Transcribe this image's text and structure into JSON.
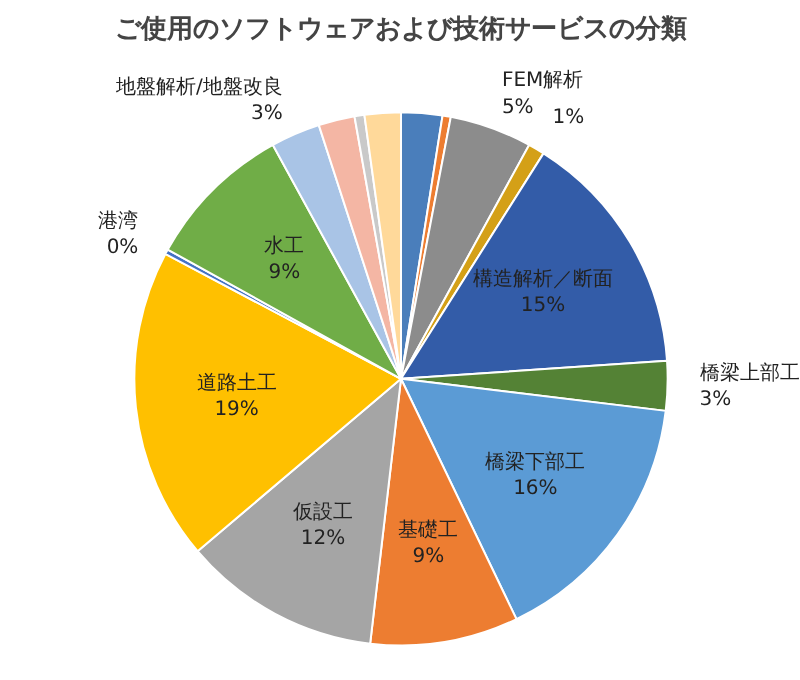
{
  "chart_data": {
    "type": "pie",
    "title": "ご使用のソフトウェアおよび技術サービスの分類",
    "categories": [
      null,
      null,
      "FEM解析",
      null,
      "構造解析／断面",
      "橋梁上部工",
      "橋梁下部工",
      "基礎工",
      "仮設工",
      "道路土工",
      "港湾",
      "水工",
      "地盤解析/地盤改良",
      null,
      null,
      null
    ],
    "values": [
      2.5,
      0.5,
      5,
      1,
      15,
      3,
      16,
      9,
      12,
      19,
      0.3,
      9,
      3,
      2.2,
      0.6,
      2.2
    ],
    "value_labels": [
      null,
      null,
      "5%",
      "1%",
      "15%",
      "3%",
      "16%",
      "9%",
      "12%",
      "19%",
      "0%",
      "9%",
      "3%",
      null,
      null,
      null
    ],
    "colors": [
      "#4a7ebb",
      "#ed7d31",
      "#8c8c8c",
      "#d4a017",
      "#335ca8",
      "#548235",
      "#5b9bd5",
      "#ed7d31",
      "#a5a5a5",
      "#ffc000",
      "#4472c4",
      "#70ad47",
      "#a9c4e6",
      "#f4b6a4",
      "#c9c9c9",
      "#ffd99a"
    ]
  }
}
